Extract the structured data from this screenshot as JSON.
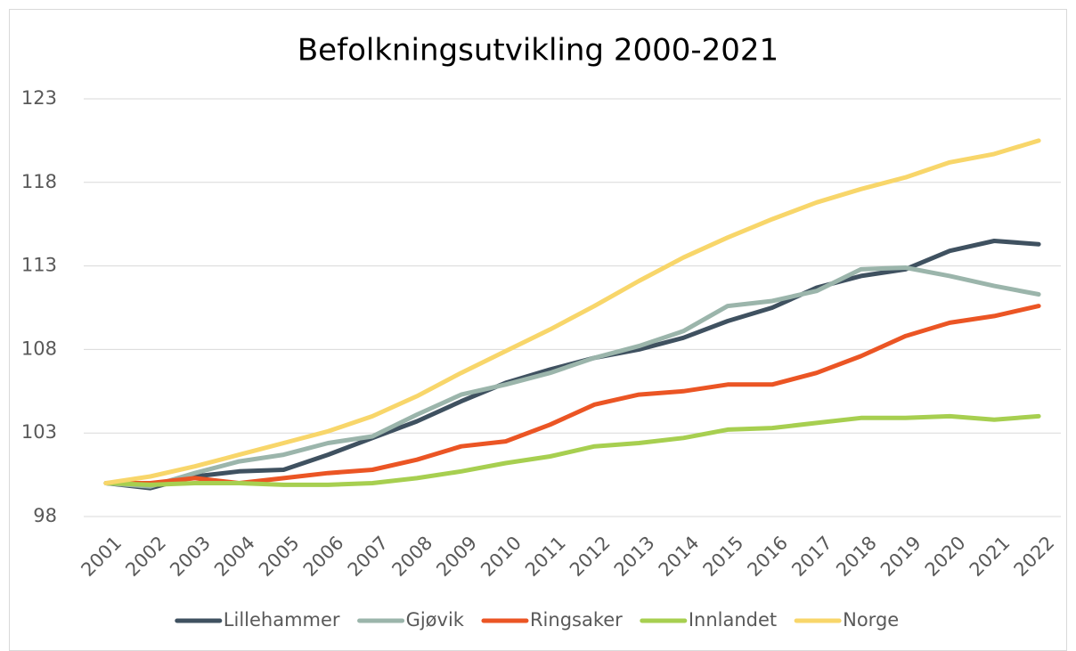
{
  "chart_data": {
    "type": "line",
    "title": "Befolkningsutvikling 2000-2021",
    "categories": [
      "2001",
      "2002",
      "2003",
      "2004",
      "2005",
      "2006",
      "2007",
      "2008",
      "2009",
      "2010",
      "2011",
      "2012",
      "2013",
      "2014",
      "2015",
      "2016",
      "2017",
      "2018",
      "2019",
      "2020",
      "2021",
      "2022"
    ],
    "series": [
      {
        "name": "Lillehammer",
        "color": "#3f5160",
        "values": [
          100,
          99.7,
          100.4,
          100.7,
          100.8,
          101.7,
          102.7,
          103.7,
          104.9,
          106.0,
          106.8,
          107.5,
          108.0,
          108.7,
          109.7,
          110.5,
          111.7,
          112.4,
          112.8,
          113.9,
          114.5,
          114.3
        ]
      },
      {
        "name": "Gjøvik",
        "color": "#9bb5ab",
        "values": [
          100,
          99.8,
          100.6,
          101.3,
          101.7,
          102.4,
          102.8,
          104.1,
          105.3,
          105.9,
          106.6,
          107.5,
          108.2,
          109.1,
          110.6,
          110.9,
          111.5,
          112.8,
          112.9,
          112.4,
          111.8,
          111.3
        ]
      },
      {
        "name": "Ringsaker",
        "color": "#eb5524",
        "values": [
          100,
          100.0,
          100.3,
          100.0,
          100.3,
          100.6,
          100.8,
          101.4,
          102.2,
          102.5,
          103.5,
          104.7,
          105.3,
          105.5,
          105.9,
          105.9,
          106.6,
          107.6,
          108.8,
          109.6,
          110.0,
          110.6
        ]
      },
      {
        "name": "Innlandet",
        "color": "#a7cf50",
        "values": [
          100,
          99.9,
          100.0,
          100.0,
          99.9,
          99.9,
          100.0,
          100.3,
          100.7,
          101.2,
          101.6,
          102.2,
          102.4,
          102.7,
          103.2,
          103.3,
          103.6,
          103.9,
          103.9,
          104.0,
          103.8,
          104.0
        ]
      },
      {
        "name": "Norge",
        "color": "#f8d66a",
        "values": [
          100,
          100.4,
          101.0,
          101.7,
          102.4,
          103.1,
          104.0,
          105.2,
          106.6,
          107.9,
          109.2,
          110.6,
          112.1,
          113.5,
          114.7,
          115.8,
          116.8,
          117.6,
          118.3,
          119.2,
          119.7,
          120.5
        ]
      }
    ],
    "ylim": [
      98,
      123
    ],
    "yticks": [
      98,
      103,
      108,
      113,
      118,
      123
    ],
    "grid": true,
    "legend": "bottom"
  }
}
